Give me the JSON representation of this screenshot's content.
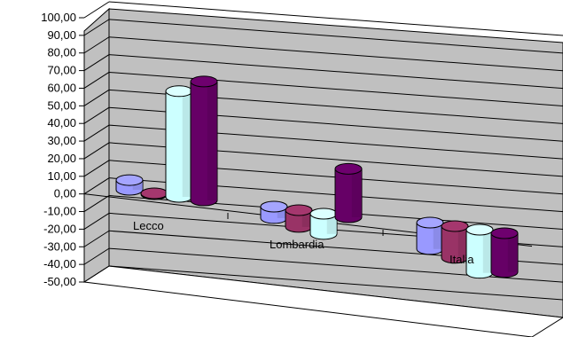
{
  "chart_data": {
    "type": "bar",
    "style": "3d-cylinder",
    "categories": [
      "Lecco",
      "Lombardia",
      "Italia"
    ],
    "series": [
      {
        "color": "#9999ff",
        "values": [
          5.5,
          -6.5,
          -15.0
        ]
      },
      {
        "color": "#993366",
        "values": [
          -0.5,
          -9.5,
          -18.0
        ]
      },
      {
        "color": "#ccffff",
        "values": [
          60.0,
          -11.5,
          -24.5
        ]
      },
      {
        "color": "#660066",
        "values": [
          67.5,
          27.5,
          -22.0
        ]
      }
    ],
    "ylim": [
      -50,
      100
    ],
    "ytick_labels": [
      "100,00",
      "90,00",
      "80,00",
      "70,00",
      "60,00",
      "50,00",
      "40,00",
      "30,00",
      "20,00",
      "10,00",
      "0,00",
      "-10,00",
      "-20,00",
      "-30,00",
      "-40,00",
      "-50,00"
    ],
    "grid": true,
    "wall_color": "#c0c0c0",
    "floor_color": "#ffffff"
  }
}
